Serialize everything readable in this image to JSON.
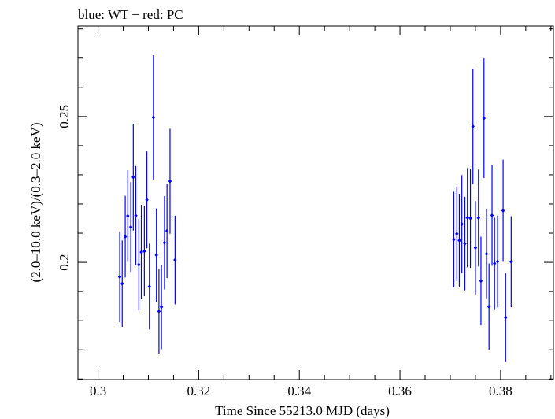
{
  "chart_data": {
    "type": "scatter",
    "title": "blue: WT − red: PC",
    "xlabel": "Time Since 55213.0 MJD (days)",
    "ylabel": "(2.0–10.0 keV)/(0.3–2.0 keV)",
    "xlim": [
      0.296,
      0.3905
    ],
    "ylim": [
      0.1598,
      0.281
    ],
    "x_ticks": [
      0.3,
      0.32,
      0.34,
      0.36,
      0.38
    ],
    "x_tick_labels": [
      "0.3",
      "0.32",
      "0.34",
      "0.36",
      "0.38"
    ],
    "y_ticks": [
      0.2,
      0.25
    ],
    "y_tick_labels": [
      "0.2",
      "0.25"
    ],
    "grid": false,
    "series": [
      {
        "color": "#0000ff",
        "marker": "diamond-with-error-bars",
        "points": [
          {
            "x": 0.3043,
            "y": 0.195,
            "err": 0.0155
          },
          {
            "x": 0.3048,
            "y": 0.1927,
            "err": 0.0148
          },
          {
            "x": 0.3054,
            "y": 0.2088,
            "err": 0.014
          },
          {
            "x": 0.3059,
            "y": 0.2159,
            "err": 0.0157
          },
          {
            "x": 0.3065,
            "y": 0.2121,
            "err": 0.0154
          },
          {
            "x": 0.307,
            "y": 0.2292,
            "err": 0.0183
          },
          {
            "x": 0.3075,
            "y": 0.216,
            "err": 0.017
          },
          {
            "x": 0.3081,
            "y": 0.1992,
            "err": 0.0156
          },
          {
            "x": 0.3086,
            "y": 0.2035,
            "err": 0.0162
          },
          {
            "x": 0.3092,
            "y": 0.2038,
            "err": 0.0154
          },
          {
            "x": 0.3097,
            "y": 0.2214,
            "err": 0.0166
          },
          {
            "x": 0.3102,
            "y": 0.1917,
            "err": 0.0147
          },
          {
            "x": 0.311,
            "y": 0.2497,
            "err": 0.0213
          },
          {
            "x": 0.3116,
            "y": 0.2025,
            "err": 0.016
          },
          {
            "x": 0.3121,
            "y": 0.1832,
            "err": 0.0145
          },
          {
            "x": 0.3126,
            "y": 0.1847,
            "err": 0.0145
          },
          {
            "x": 0.3132,
            "y": 0.2067,
            "err": 0.016
          },
          {
            "x": 0.3137,
            "y": 0.2108,
            "err": 0.0162
          },
          {
            "x": 0.3143,
            "y": 0.2278,
            "err": 0.018
          },
          {
            "x": 0.3153,
            "y": 0.2008,
            "err": 0.0152
          },
          {
            "x": 0.3707,
            "y": 0.2078,
            "err": 0.0164
          },
          {
            "x": 0.3713,
            "y": 0.2098,
            "err": 0.0162
          },
          {
            "x": 0.3718,
            "y": 0.2075,
            "err": 0.016
          },
          {
            "x": 0.3723,
            "y": 0.2131,
            "err": 0.0168
          },
          {
            "x": 0.3729,
            "y": 0.2064,
            "err": 0.016
          },
          {
            "x": 0.3734,
            "y": 0.2153,
            "err": 0.017
          },
          {
            "x": 0.374,
            "y": 0.2151,
            "err": 0.017
          },
          {
            "x": 0.3745,
            "y": 0.2466,
            "err": 0.0198
          },
          {
            "x": 0.375,
            "y": 0.205,
            "err": 0.016
          },
          {
            "x": 0.3756,
            "y": 0.2152,
            "err": 0.0166
          },
          {
            "x": 0.3761,
            "y": 0.1936,
            "err": 0.0152
          },
          {
            "x": 0.3767,
            "y": 0.2494,
            "err": 0.0205
          },
          {
            "x": 0.3772,
            "y": 0.2029,
            "err": 0.0155
          },
          {
            "x": 0.3777,
            "y": 0.1848,
            "err": 0.0148
          },
          {
            "x": 0.3783,
            "y": 0.2161,
            "err": 0.0173
          },
          {
            "x": 0.3788,
            "y": 0.1996,
            "err": 0.0157
          },
          {
            "x": 0.3794,
            "y": 0.2003,
            "err": 0.0157
          },
          {
            "x": 0.3805,
            "y": 0.2177,
            "err": 0.0175
          },
          {
            "x": 0.381,
            "y": 0.1811,
            "err": 0.0152
          },
          {
            "x": 0.3821,
            "y": 0.2002,
            "err": 0.0156
          }
        ]
      }
    ]
  }
}
